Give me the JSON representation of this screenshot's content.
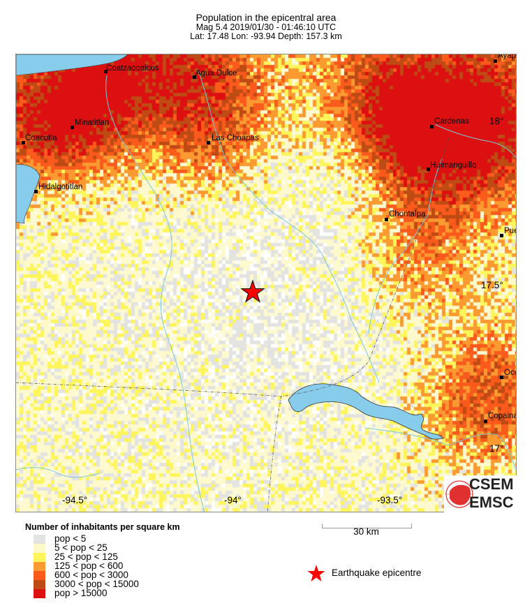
{
  "header": {
    "title": "Population in the epicentral area",
    "event_line": "Mag 5.4  2019/01/30 - 01:46:10 UTC",
    "location_line": "Lat: 17.48    Lon: -93.94      Depth: 157.3 km"
  },
  "map": {
    "cities": [
      {
        "name": "Coatzacoalcos"
      },
      {
        "name": "Agua Dulce"
      },
      {
        "name": "Minatitlan"
      },
      {
        "name": "Coacotla"
      },
      {
        "name": "Las Choapas"
      },
      {
        "name": "Hidalgotitlan"
      },
      {
        "name": "Cardenas"
      },
      {
        "name": "Huimanguillo"
      },
      {
        "name": "Chontalpa"
      },
      {
        "name": "Ayap"
      },
      {
        "name": "Pue"
      },
      {
        "name": "Oco"
      },
      {
        "name": "Copaina"
      }
    ],
    "lat_labels": [
      "18°",
      "17.5°",
      "17°"
    ],
    "lon_labels": [
      "-94.5°",
      "-94°",
      "-93.5°"
    ],
    "epicentre": {
      "lat": 17.48,
      "lon": -93.94,
      "icon": "red-star-icon",
      "color": "#ff0000"
    },
    "water_color": "#87cdeb"
  },
  "logo": {
    "top": "CSEM",
    "bottom": "EMSC"
  },
  "legend": {
    "title": "Number of inhabitants per square km",
    "items": [
      {
        "label": "pop < 5",
        "color": "#e3e3e1"
      },
      {
        "label": "5 < pop < 25",
        "color": "#fdf9c8"
      },
      {
        "label": "25 < pop < 125",
        "color": "#fdf55a"
      },
      {
        "label": "125 < pop < 600",
        "color": "#fb9a31"
      },
      {
        "label": "600 < pop < 3000",
        "color": "#fa5a1c"
      },
      {
        "label": "3000 < pop < 15000",
        "color": "#be4a14"
      },
      {
        "label": "pop > 15000",
        "color": "#dc1010"
      }
    ]
  },
  "scale": {
    "label": "30 km"
  },
  "epicentre_legend": {
    "label": "Earthquake epicentre"
  }
}
